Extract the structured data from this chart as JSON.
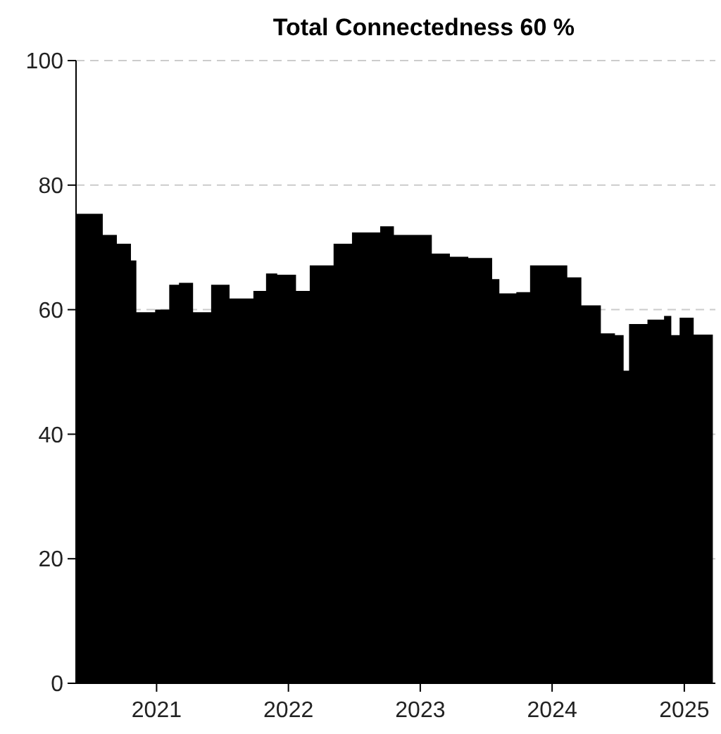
{
  "chart_data": {
    "type": "area",
    "title": "Total Connectedness 60 %",
    "x": [
      "2020-05-23",
      "2020-07-25",
      "2020-08-05",
      "2020-09-13",
      "2020-10-22",
      "2020-11-06",
      "2020-12-28",
      "2021-02-05",
      "2021-03-04",
      "2021-04-12",
      "2021-06-01",
      "2021-07-22",
      "2021-09-26",
      "2021-10-31",
      "2021-12-01",
      "2022-01-22",
      "2022-03-01",
      "2022-05-06",
      "2022-06-26",
      "2022-09-12",
      "2022-10-20",
      "2022-11-28",
      "2023-02-02",
      "2023-03-24",
      "2023-05-14",
      "2023-07-19",
      "2023-08-08",
      "2023-09-24",
      "2023-11-01",
      "2023-12-22",
      "2024-02-12",
      "2024-03-22",
      "2024-05-15",
      "2024-06-23",
      "2024-07-17",
      "2024-08-01",
      "2024-09-21",
      "2024-11-06",
      "2024-11-26",
      "2024-12-19",
      "2025-01-27",
      "2025-03-21"
    ],
    "series": [
      {
        "color": "#000000",
        "values": [
          75.4,
          75.4,
          72,
          70.6,
          67.9,
          59.6,
          60,
          64,
          64.3,
          59.6,
          64,
          61.8,
          63,
          65.8,
          65.6,
          63,
          67.1,
          70.6,
          72.4,
          73.4,
          72,
          72,
          69,
          68.5,
          68.3,
          64.9,
          62.6,
          62.8,
          67.1,
          67.1,
          65.2,
          60.7,
          56.2,
          55.9,
          50.2,
          57.7,
          58.4,
          59,
          55.9,
          58.7,
          56,
          59.6
        ]
      }
    ],
    "xlim": [
      "2020-05-23",
      "2025-03-28"
    ],
    "xticks": [
      {
        "value": "2021-01-01",
        "label": "2021"
      },
      {
        "value": "2022-01-01",
        "label": "2022"
      },
      {
        "value": "2023-01-01",
        "label": "2023"
      },
      {
        "value": "2024-01-01",
        "label": "2024"
      },
      {
        "value": "2025-01-01",
        "label": "2025"
      }
    ],
    "ylim": [
      0,
      100
    ],
    "yticks": [
      0,
      20,
      40,
      60,
      80,
      100
    ],
    "grid": "y"
  }
}
